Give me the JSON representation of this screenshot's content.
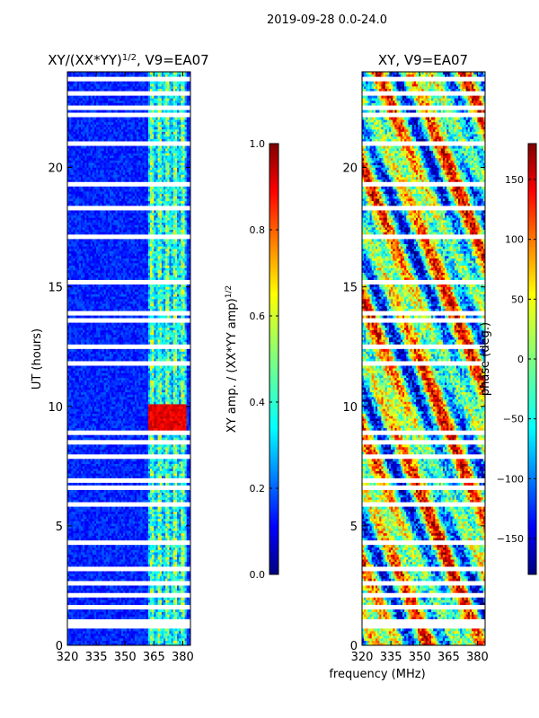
{
  "figure": {
    "suptitle": "2019-09-28 0.0-24.0",
    "shared_xlabel": "frequency (MHz)"
  },
  "chart_data": [
    {
      "type": "heatmap",
      "name": "amplitude-ratio",
      "title": "XY/(XX*YY)",
      "title_exponent": "1/2",
      "title_suffix": ", V9=EA07",
      "xlabel": "",
      "ylabel": "UT (hours)",
      "xlim": [
        320,
        384
      ],
      "ylim": [
        0,
        24
      ],
      "x_ticks": [
        320,
        335,
        350,
        365,
        380
      ],
      "y_ticks": [
        0,
        5,
        10,
        15,
        20
      ],
      "colormap": "jet",
      "colorbar": {
        "label": "XY amp. / (XX*YY amp)",
        "label_exponent": "1/2",
        "range": [
          0.0,
          1.0
        ],
        "ticks": [
          "0.0",
          "0.2",
          "0.4",
          "0.6",
          "0.8",
          "1.0"
        ]
      },
      "features": {
        "background_value": 0.1,
        "bright_band_mhz": [
          362,
          382
        ],
        "bright_columns_mhz": [
          364,
          368,
          372,
          376,
          380
        ],
        "bright_column_value": 0.6,
        "peak_hours": [
          9,
          10
        ],
        "peak_value": 0.85,
        "gap_hours": [
          0.8,
          1.0,
          1.6,
          2.1,
          2.6,
          3.2,
          4.3,
          5.9,
          6.6,
          6.9,
          7.9,
          8.5,
          8.9,
          11.8,
          12.5,
          13.6,
          13.9,
          15.2,
          17.1,
          18.3,
          19.3,
          21.0,
          22.2,
          22.5,
          23.1,
          23.7
        ]
      }
    },
    {
      "type": "heatmap",
      "name": "xy-phase",
      "title": "XY, V9=EA07",
      "xlabel": "frequency (MHz)",
      "ylabel": "",
      "xlim": [
        320,
        384
      ],
      "ylim": [
        0,
        24
      ],
      "x_ticks": [
        320,
        335,
        350,
        365,
        380
      ],
      "y_ticks": [
        0,
        5,
        10,
        15,
        20
      ],
      "colormap": "jet",
      "colorbar": {
        "label": "phase (deg.)",
        "range": [
          -180,
          180
        ],
        "ticks": [
          "−150",
          "−100",
          "−50",
          "0",
          "50",
          "100",
          "150"
        ]
      },
      "features": {
        "value_range_deg": [
          -180,
          180
        ],
        "gap_hours": [
          0.8,
          1.0,
          1.6,
          2.1,
          2.6,
          3.2,
          4.3,
          5.9,
          6.6,
          6.9,
          7.9,
          8.5,
          8.9,
          11.8,
          12.5,
          13.6,
          13.9,
          15.2,
          17.1,
          18.3,
          19.3,
          21.0,
          22.2,
          22.5,
          23.1,
          23.7
        ]
      }
    }
  ]
}
